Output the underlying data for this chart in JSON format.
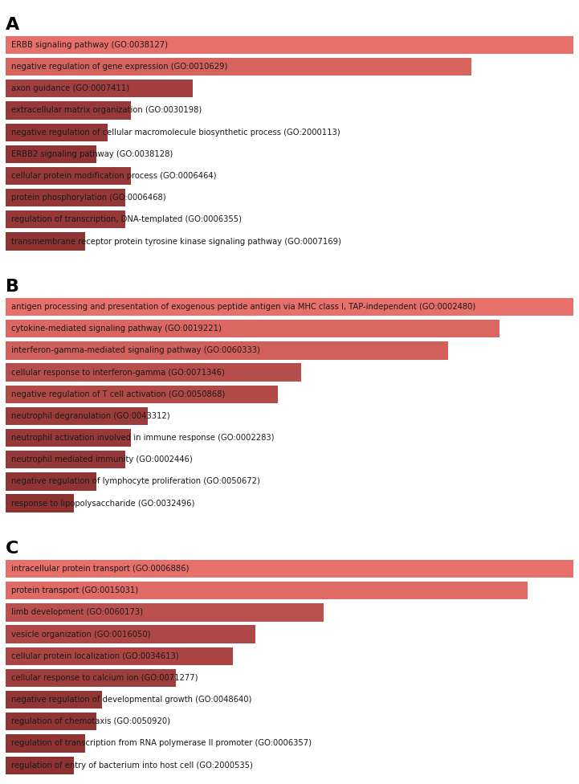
{
  "panels": [
    {
      "label": "A",
      "items": [
        {
          "term": "ERBB signaling pathway (GO:0038127)",
          "value": 100
        },
        {
          "term": "negative regulation of gene expression (GO:0010629)",
          "value": 82
        },
        {
          "term": "axon guidance (GO:0007411)",
          "value": 33
        },
        {
          "term": "extracellular matrix organization (GO:0030198)",
          "value": 22
        },
        {
          "term": "negative regulation of cellular macromolecule biosynthetic process (GO:2000113)",
          "value": 18
        },
        {
          "term": "ERBB2 signaling pathway (GO:0038128)",
          "value": 16
        },
        {
          "term": "cellular protein modification process (GO:0006464)",
          "value": 22
        },
        {
          "term": "protein phosphorylation (GO:0006468)",
          "value": 21
        },
        {
          "term": "regulation of transcription, DNA-templated (GO:0006355)",
          "value": 21
        },
        {
          "term": "transmembrane receptor protein tyrosine kinase signaling pathway (GO:0007169)",
          "value": 14
        }
      ]
    },
    {
      "label": "B",
      "items": [
        {
          "term": "antigen processing and presentation of exogenous peptide antigen via MHC class I, TAP-independent (GO:0002480)",
          "value": 100
        },
        {
          "term": "cytokine-mediated signaling pathway (GO:0019221)",
          "value": 87
        },
        {
          "term": "interferon-gamma-mediated signaling pathway (GO:0060333)",
          "value": 78
        },
        {
          "term": "cellular response to interferon-gamma (GO:0071346)",
          "value": 52
        },
        {
          "term": "negative regulation of T cell activation (GO:0050868)",
          "value": 48
        },
        {
          "term": "neutrophil degranulation (GO:0043312)",
          "value": 25
        },
        {
          "term": "neutrophil activation involved in immune response (GO:0002283)",
          "value": 22
        },
        {
          "term": "neutrophil mediated immunity (GO:0002446)",
          "value": 21
        },
        {
          "term": "negative regulation of lymphocyte proliferation (GO:0050672)",
          "value": 16
        },
        {
          "term": "response to lipopolysaccharide (GO:0032496)",
          "value": 12
        }
      ]
    },
    {
      "label": "C",
      "items": [
        {
          "term": "intracellular protein transport (GO:0006886)",
          "value": 100
        },
        {
          "term": "protein transport (GO:0015031)",
          "value": 92
        },
        {
          "term": "limb development (GO:0060173)",
          "value": 56
        },
        {
          "term": "vesicle organization (GO:0016050)",
          "value": 44
        },
        {
          "term": "cellular protein localization (GO:0034613)",
          "value": 40
        },
        {
          "term": "cellular response to calcium ion (GO:0071277)",
          "value": 30
        },
        {
          "term": "negative regulation of developmental growth (GO:0048640)",
          "value": 17
        },
        {
          "term": "regulation of chemotaxis (GO:0050920)",
          "value": 16
        },
        {
          "term": "regulation of transcription from RNA polymerase II promoter (GO:0006357)",
          "value": 14
        },
        {
          "term": "regulation of entry of bacterium into host cell (GO:2000535)",
          "value": 12
        }
      ]
    }
  ],
  "color_high": "#E8706A",
  "color_low": "#8B3030",
  "bar_height": 0.82,
  "fontsize": 7.2,
  "bg_color": "#FFFFFF",
  "label_fontsize": 16,
  "bar_gap": 0.18
}
